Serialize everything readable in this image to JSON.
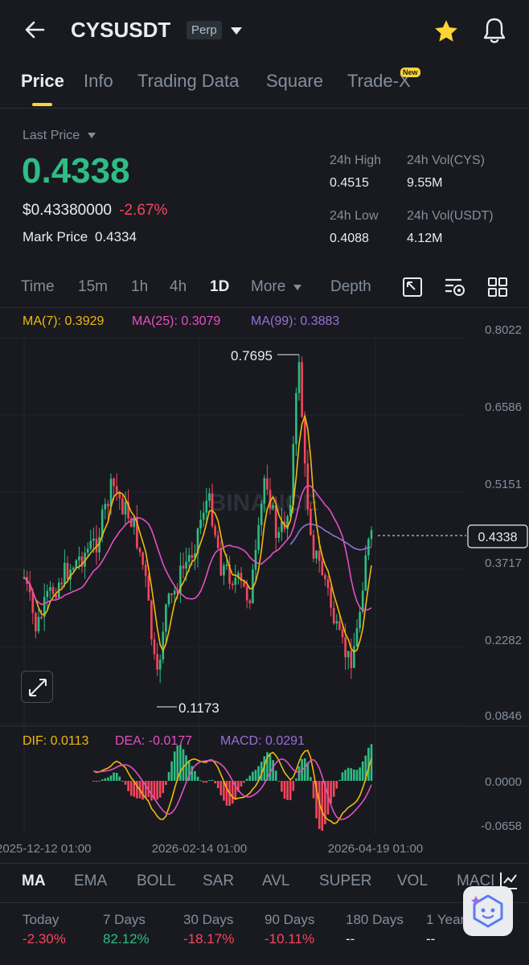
{
  "header": {
    "symbol": "CYSUSDT",
    "badge": "Perp"
  },
  "tabs": [
    {
      "label": "Price",
      "active": true
    },
    {
      "label": "Info"
    },
    {
      "label": "Trading Data"
    },
    {
      "label": "Square"
    },
    {
      "label": "Trade-X",
      "badge": "New"
    }
  ],
  "price": {
    "last_price_label": "Last Price",
    "last_price": "0.4338",
    "usd_value": "$0.43380000",
    "change": "-2.67%",
    "mark_price_label": "Mark Price",
    "mark_price": "0.4334",
    "stats": {
      "high_label": "24h High",
      "high": "0.4515",
      "vol_base_label": "24h Vol(CYS)",
      "vol_base": "9.55M",
      "low_label": "24h Low",
      "low": "0.4088",
      "vol_quote_label": "24h Vol(USDT)",
      "vol_quote": "4.12M"
    }
  },
  "intervals": {
    "items": [
      "Time",
      "15m",
      "1h",
      "4h",
      "1D"
    ],
    "active": "1D",
    "more": "More",
    "depth": "Depth"
  },
  "chart": {
    "ma_legend": {
      "ma7": "MA(7): 0.3929",
      "ma25": "MA(25): 0.3079",
      "ma99": "MA(99): 0.3883"
    },
    "price_axis": [
      "0.8022",
      "0.6586",
      "0.5151",
      "0.3717",
      "0.2282",
      "0.0846"
    ],
    "current_price_tag": "0.4338",
    "high_marker": "0.7695",
    "low_marker": "0.1173",
    "watermark": "BINANCE",
    "macd_legend": {
      "dif": "DIF: 0.0113",
      "dea": "DEA: -0.0177",
      "macd": "MACD: 0.0291"
    },
    "macd_axis": [
      "0.0000",
      "-0.0658"
    ],
    "time_axis": [
      "2025-12-12 01:00",
      "2026-02-14 01:00",
      "2026-04-19 01:00"
    ],
    "colors": {
      "up": "#2ebd85",
      "down": "#f6465d",
      "ma7": "#f0b90b",
      "ma25": "#e54fc1",
      "ma99": "#9b6fd8"
    }
  },
  "indicators": {
    "items": [
      "MA",
      "EMA",
      "BOLL",
      "SAR",
      "AVL",
      "SUPER",
      "VOL",
      "MACD"
    ],
    "active": "MA"
  },
  "performance": [
    {
      "label": "Today",
      "value": "-2.30%",
      "dir": "down"
    },
    {
      "label": "7 Days",
      "value": "82.12%",
      "dir": "up"
    },
    {
      "label": "30 Days",
      "value": "-18.17%",
      "dir": "down"
    },
    {
      "label": "90 Days",
      "value": "-10.11%",
      "dir": "down"
    },
    {
      "label": "180 Days",
      "value": "--",
      "dir": "none"
    },
    {
      "label": "1 Year",
      "value": "--",
      "dir": "none"
    }
  ]
}
